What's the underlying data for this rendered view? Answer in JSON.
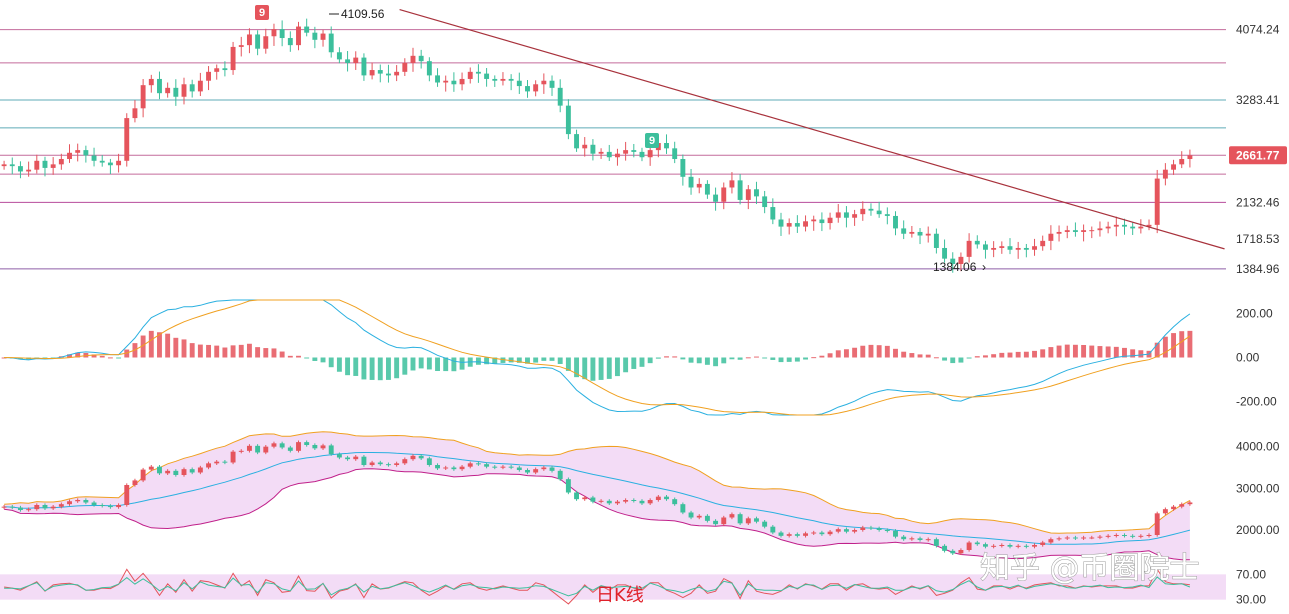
{
  "chart_data": [
    {
      "type": "candlestick",
      "panel": "price",
      "y_ticks": [
        "4074.24",
        "3283.41",
        "2132.46",
        "1718.53",
        "1384.96"
      ],
      "ylim": [
        1260,
        4340
      ],
      "last_price": "2661.77",
      "last_price_color": "#e5545c",
      "annotations": {
        "high_label": "4109.56",
        "low_label": "1384.06",
        "marker_top": "9",
        "marker_mid": "9"
      },
      "horizontal_levels": [
        4074.24,
        3700,
        3283.41,
        2970,
        2661.77,
        2450,
        2132.46,
        1384.96
      ],
      "level_colors": [
        "#b03a7a",
        "#b03a7a",
        "#2a8fa0",
        "#2a8fa0",
        "#b03a7a",
        "#b03a7a",
        "#a0107a",
        "#6a2a8a"
      ],
      "trendline": {
        "from": [
          0.31,
          4300
        ],
        "to": [
          0.95,
          1610
        ],
        "color": "#a8323c"
      },
      "up_color": "#e5545c",
      "down_color": "#3cbf9c",
      "series_close": [
        2560,
        2540,
        2480,
        2500,
        2600,
        2520,
        2560,
        2620,
        2690,
        2720,
        2660,
        2600,
        2580,
        2550,
        2600,
        3080,
        3190,
        3450,
        3520,
        3360,
        3420,
        3320,
        3460,
        3380,
        3500,
        3600,
        3640,
        3620,
        3880,
        3900,
        4020,
        3860,
        4000,
        4080,
        3980,
        3900,
        4109,
        4040,
        3960,
        4030,
        3820,
        3740,
        3700,
        3760,
        3560,
        3620,
        3580,
        3560,
        3600,
        3700,
        3780,
        3720,
        3560,
        3480,
        3500,
        3460,
        3520,
        3600,
        3580,
        3520,
        3500,
        3520,
        3500,
        3440,
        3380,
        3460,
        3500,
        3420,
        3220,
        2900,
        2740,
        2780,
        2680,
        2700,
        2640,
        2680,
        2720,
        2700,
        2640,
        2720,
        2800,
        2740,
        2620,
        2420,
        2300,
        2340,
        2220,
        2140,
        2300,
        2380,
        2160,
        2280,
        2200,
        2080,
        1940,
        1860,
        1900,
        1860,
        1920,
        1940,
        1900,
        1960,
        2020,
        1960,
        2000,
        2060,
        2040,
        2000,
        1980,
        1840,
        1780,
        1800,
        1760,
        1780,
        1620,
        1500,
        1440,
        1520,
        1700,
        1660,
        1600,
        1620,
        1640,
        1600,
        1620,
        1600,
        1640,
        1700,
        1780,
        1800,
        1820,
        1800,
        1820,
        1820,
        1840,
        1860,
        1880,
        1860,
        1840,
        1860,
        1880,
        2400,
        2500,
        2560,
        2620,
        2661
      ]
    },
    {
      "type": "macd",
      "panel": "indicator-1",
      "y_ticks": [
        "200.00",
        "0.00",
        "-200.00"
      ],
      "ylim": [
        -260,
        260
      ],
      "dif_color": "#2ab0e0",
      "dea_color": "#f0a020",
      "up_color": "#e5545c",
      "down_color": "#3cbf9c"
    },
    {
      "type": "bollinger",
      "panel": "indicator-2",
      "y_ticks": [
        "4000.00",
        "3000.00",
        "2000.00"
      ],
      "ylim": [
        1400,
        4400
      ],
      "upper_color": "#f0a020",
      "mid_color": "#2ab0e0",
      "lower_color": "#c0208a",
      "fill_color": "#f3dcf6"
    },
    {
      "type": "oscillator",
      "panel": "indicator-3",
      "y_ticks": [
        "70.00",
        "30.00"
      ],
      "ylim": [
        20,
        80
      ],
      "fill_color": "#f3dcf6"
    }
  ],
  "watermark": "知乎 @币圈院士",
  "caption": "日K线"
}
